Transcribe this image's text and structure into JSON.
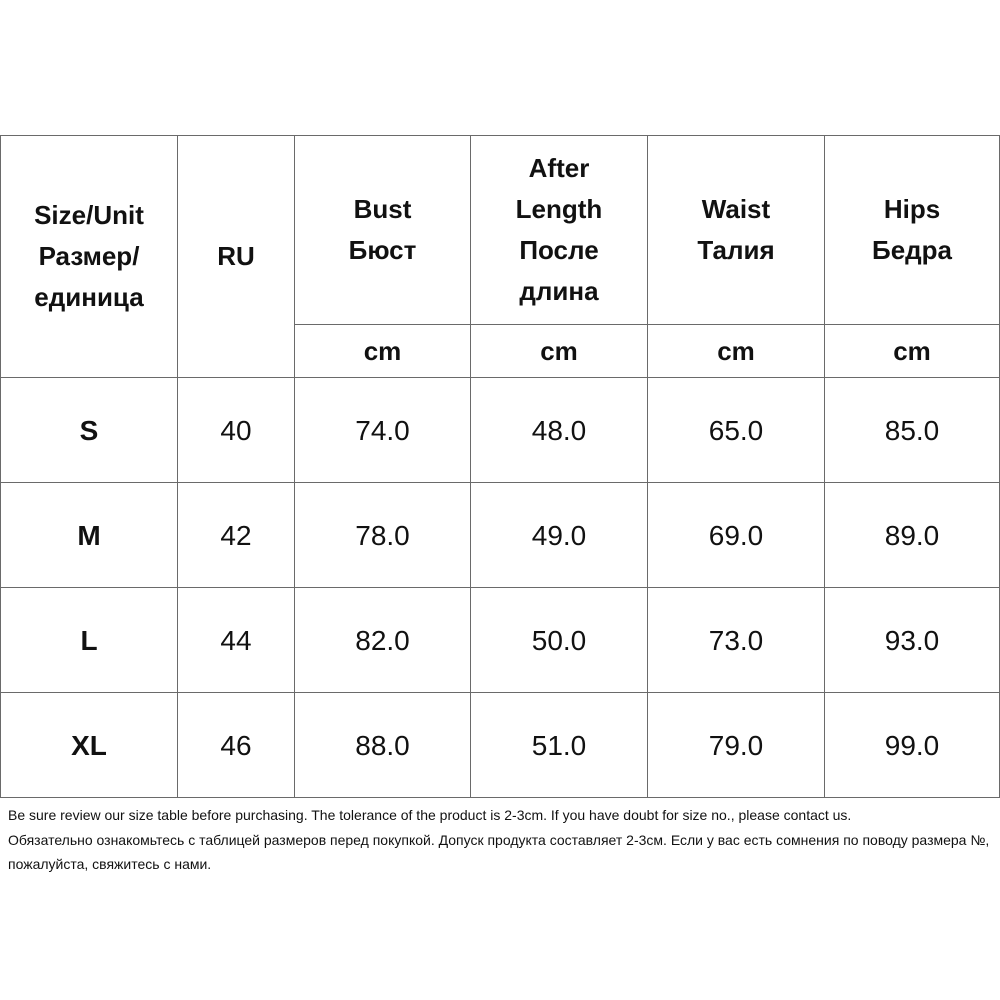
{
  "headers": {
    "size_unit": [
      "Size/Unit",
      "Размер/",
      "единица"
    ],
    "ru": "RU",
    "bust": [
      "Bust",
      "Бюст"
    ],
    "after_length": [
      "After",
      "Length",
      "После",
      "длина"
    ],
    "waist": [
      "Waist",
      "Талия"
    ],
    "hips": [
      "Hips",
      "Бедра"
    ],
    "unit": "cm"
  },
  "rows": [
    {
      "size": "S",
      "ru": "40",
      "bust": "74.0",
      "length": "48.0",
      "waist": "65.0",
      "hips": "85.0"
    },
    {
      "size": "M",
      "ru": "42",
      "bust": "78.0",
      "length": "49.0",
      "waist": "69.0",
      "hips": "89.0"
    },
    {
      "size": "L",
      "ru": "44",
      "bust": "82.0",
      "length": "50.0",
      "waist": "73.0",
      "hips": "93.0"
    },
    {
      "size": "XL",
      "ru": "46",
      "bust": "88.0",
      "length": "51.0",
      "waist": "79.0",
      "hips": "99.0"
    }
  ],
  "note": {
    "en": "Be sure review our size table before purchasing. The tolerance of the product is 2-3cm. If you have doubt for size no., please contact us.",
    "ru": "Обязательно ознакомьтесь с таблицей размеров перед покупкой. Допуск продукта составляет 2-3см. Если у вас есть сомнения по поводу размера №, пожалуйста, свяжитесь с нами."
  }
}
